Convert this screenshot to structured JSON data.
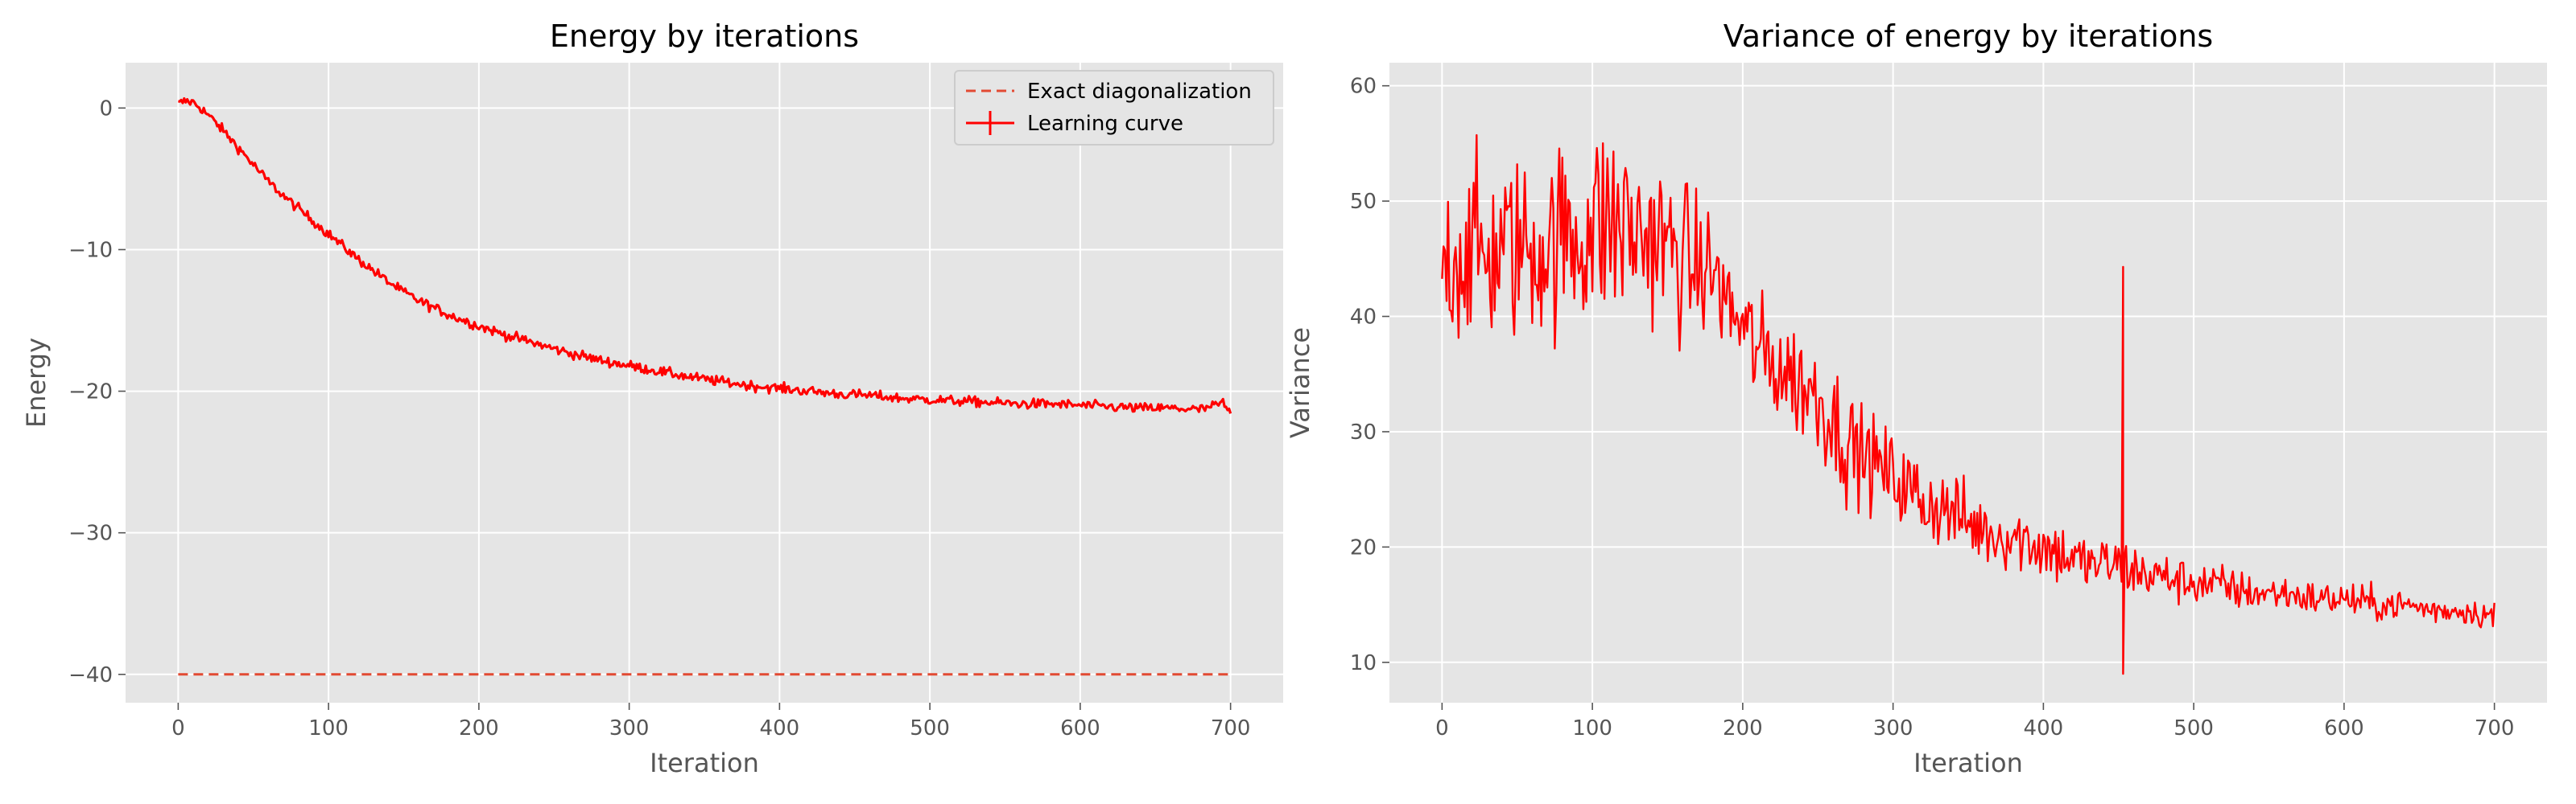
{
  "colors": {
    "plot_bg": "#E5E5E5",
    "grid": "#FFFFFF",
    "series": "#FF0000",
    "exact_line": "#E24A33",
    "text": "#000000",
    "tick_text": "#555555"
  },
  "chart_data": [
    {
      "type": "line",
      "title": "Energy by iterations",
      "xlabel": "Iteration",
      "ylabel": "Energy",
      "xlim": [
        -35,
        735
      ],
      "ylim": [
        -42,
        3.2
      ],
      "xticks": [
        0,
        100,
        200,
        300,
        400,
        500,
        600,
        700
      ],
      "yticks": [
        0,
        -10,
        -20,
        -30,
        -40
      ],
      "grid": true,
      "legend": {
        "position": "top-right",
        "entries": [
          "Exact diagonalization",
          "Learning curve"
        ]
      },
      "series": [
        {
          "name": "Exact diagonalization",
          "style": "dashed",
          "x": [
            0,
            700
          ],
          "y": [
            -40,
            -40
          ]
        },
        {
          "name": "Learning curve",
          "style": "solid",
          "noise": 0.35,
          "x": [
            0,
            5,
            10,
            15,
            20,
            30,
            40,
            50,
            60,
            70,
            80,
            90,
            100,
            110,
            120,
            130,
            140,
            150,
            160,
            180,
            200,
            220,
            240,
            260,
            280,
            300,
            320,
            340,
            360,
            380,
            400,
            420,
            440,
            460,
            480,
            500,
            520,
            540,
            560,
            580,
            600,
            620,
            640,
            660,
            680,
            690,
            695,
            700
          ],
          "y": [
            0.3,
            0.5,
            0.4,
            0.0,
            -0.5,
            -1.6,
            -2.8,
            -4.0,
            -5.2,
            -6.2,
            -7.1,
            -8.0,
            -8.9,
            -9.8,
            -10.7,
            -11.5,
            -12.3,
            -13.0,
            -13.6,
            -14.6,
            -15.4,
            -16.1,
            -16.7,
            -17.3,
            -17.8,
            -18.2,
            -18.6,
            -19.0,
            -19.3,
            -19.6,
            -19.8,
            -20.0,
            -20.2,
            -20.3,
            -20.5,
            -20.6,
            -20.7,
            -20.8,
            -20.9,
            -20.9,
            -21.0,
            -21.1,
            -21.2,
            -21.2,
            -21.3,
            -21.0,
            -20.8,
            -21.7
          ]
        }
      ]
    },
    {
      "type": "line",
      "title": "Variance of energy by iterations",
      "xlabel": "Iteration",
      "ylabel": "Variance",
      "xlim": [
        -35,
        735
      ],
      "ylim": [
        6.5,
        62
      ],
      "xticks": [
        0,
        100,
        200,
        300,
        400,
        500,
        600,
        700
      ],
      "yticks": [
        10,
        20,
        30,
        40,
        50,
        60
      ],
      "grid": true,
      "series": [
        {
          "style": "solid",
          "x": [
            0,
            10,
            20,
            30,
            40,
            50,
            60,
            70,
            80,
            90,
            100,
            110,
            120,
            130,
            140,
            150,
            160,
            170,
            180,
            190,
            200,
            210,
            220,
            230,
            240,
            250,
            260,
            270,
            280,
            290,
            300,
            310,
            320,
            330,
            340,
            350,
            360,
            370,
            380,
            390,
            400,
            410,
            420,
            430,
            440,
            450,
            460,
            470,
            480,
            490,
            500,
            520,
            540,
            560,
            580,
            600,
            620,
            640,
            660,
            680,
            700
          ],
          "y": [
            45,
            45,
            46,
            45,
            46,
            46,
            46,
            46,
            47,
            47,
            48,
            48,
            48,
            47,
            47,
            46,
            45,
            44,
            44,
            41,
            39,
            37,
            36,
            35,
            34,
            33,
            31,
            29,
            28,
            27,
            26,
            25,
            24,
            23.5,
            23,
            22,
            21.5,
            21,
            21,
            20.5,
            20,
            19.5,
            19,
            18.5,
            18.5,
            18.5,
            18,
            17.5,
            17.5,
            17,
            17,
            16.5,
            16,
            16,
            15.5,
            15.5,
            15,
            15,
            14.5,
            14.5,
            14
          ],
          "noise": [
            7,
            7,
            8,
            8,
            8,
            8,
            8,
            8,
            8,
            9,
            9,
            9,
            9,
            8,
            8,
            7,
            7,
            6,
            5,
            5,
            5,
            5,
            5,
            5,
            5,
            5,
            5,
            5,
            4,
            4,
            4,
            4,
            4,
            3.5,
            3.5,
            3.5,
            3,
            3,
            3,
            3,
            3,
            3,
            2.5,
            2.5,
            2.5,
            2.5,
            2.5,
            2,
            2,
            2,
            2,
            2,
            1.5,
            1.5,
            1.5,
            1.5,
            1.5,
            1.2,
            1.2,
            1.2,
            1.2
          ],
          "spikes": [
            {
              "x": 453,
              "high": 44.3,
              "low": 9.0
            }
          ]
        }
      ]
    }
  ]
}
